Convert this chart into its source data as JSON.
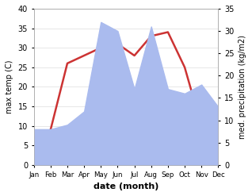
{
  "months": [
    "Jan",
    "Feb",
    "Mar",
    "Apr",
    "May",
    "Jun",
    "Jul",
    "Aug",
    "Sep",
    "Oct",
    "Nov",
    "Dec"
  ],
  "temp": [
    7,
    9,
    26,
    28,
    30,
    31,
    28,
    33,
    34,
    25,
    10,
    10
  ],
  "precip": [
    8,
    8,
    9,
    12,
    32,
    30,
    17,
    31,
    17,
    16,
    18,
    13
  ],
  "temp_color": "#cc3333",
  "precip_color": "#aabbee",
  "temp_ylim": [
    0,
    40
  ],
  "precip_ylim": [
    0,
    35
  ],
  "temp_ylabel": "max temp (C)",
  "precip_ylabel": "med. precipitation (kg/m2)",
  "xlabel": "date (month)",
  "grid_color": "#dddddd"
}
